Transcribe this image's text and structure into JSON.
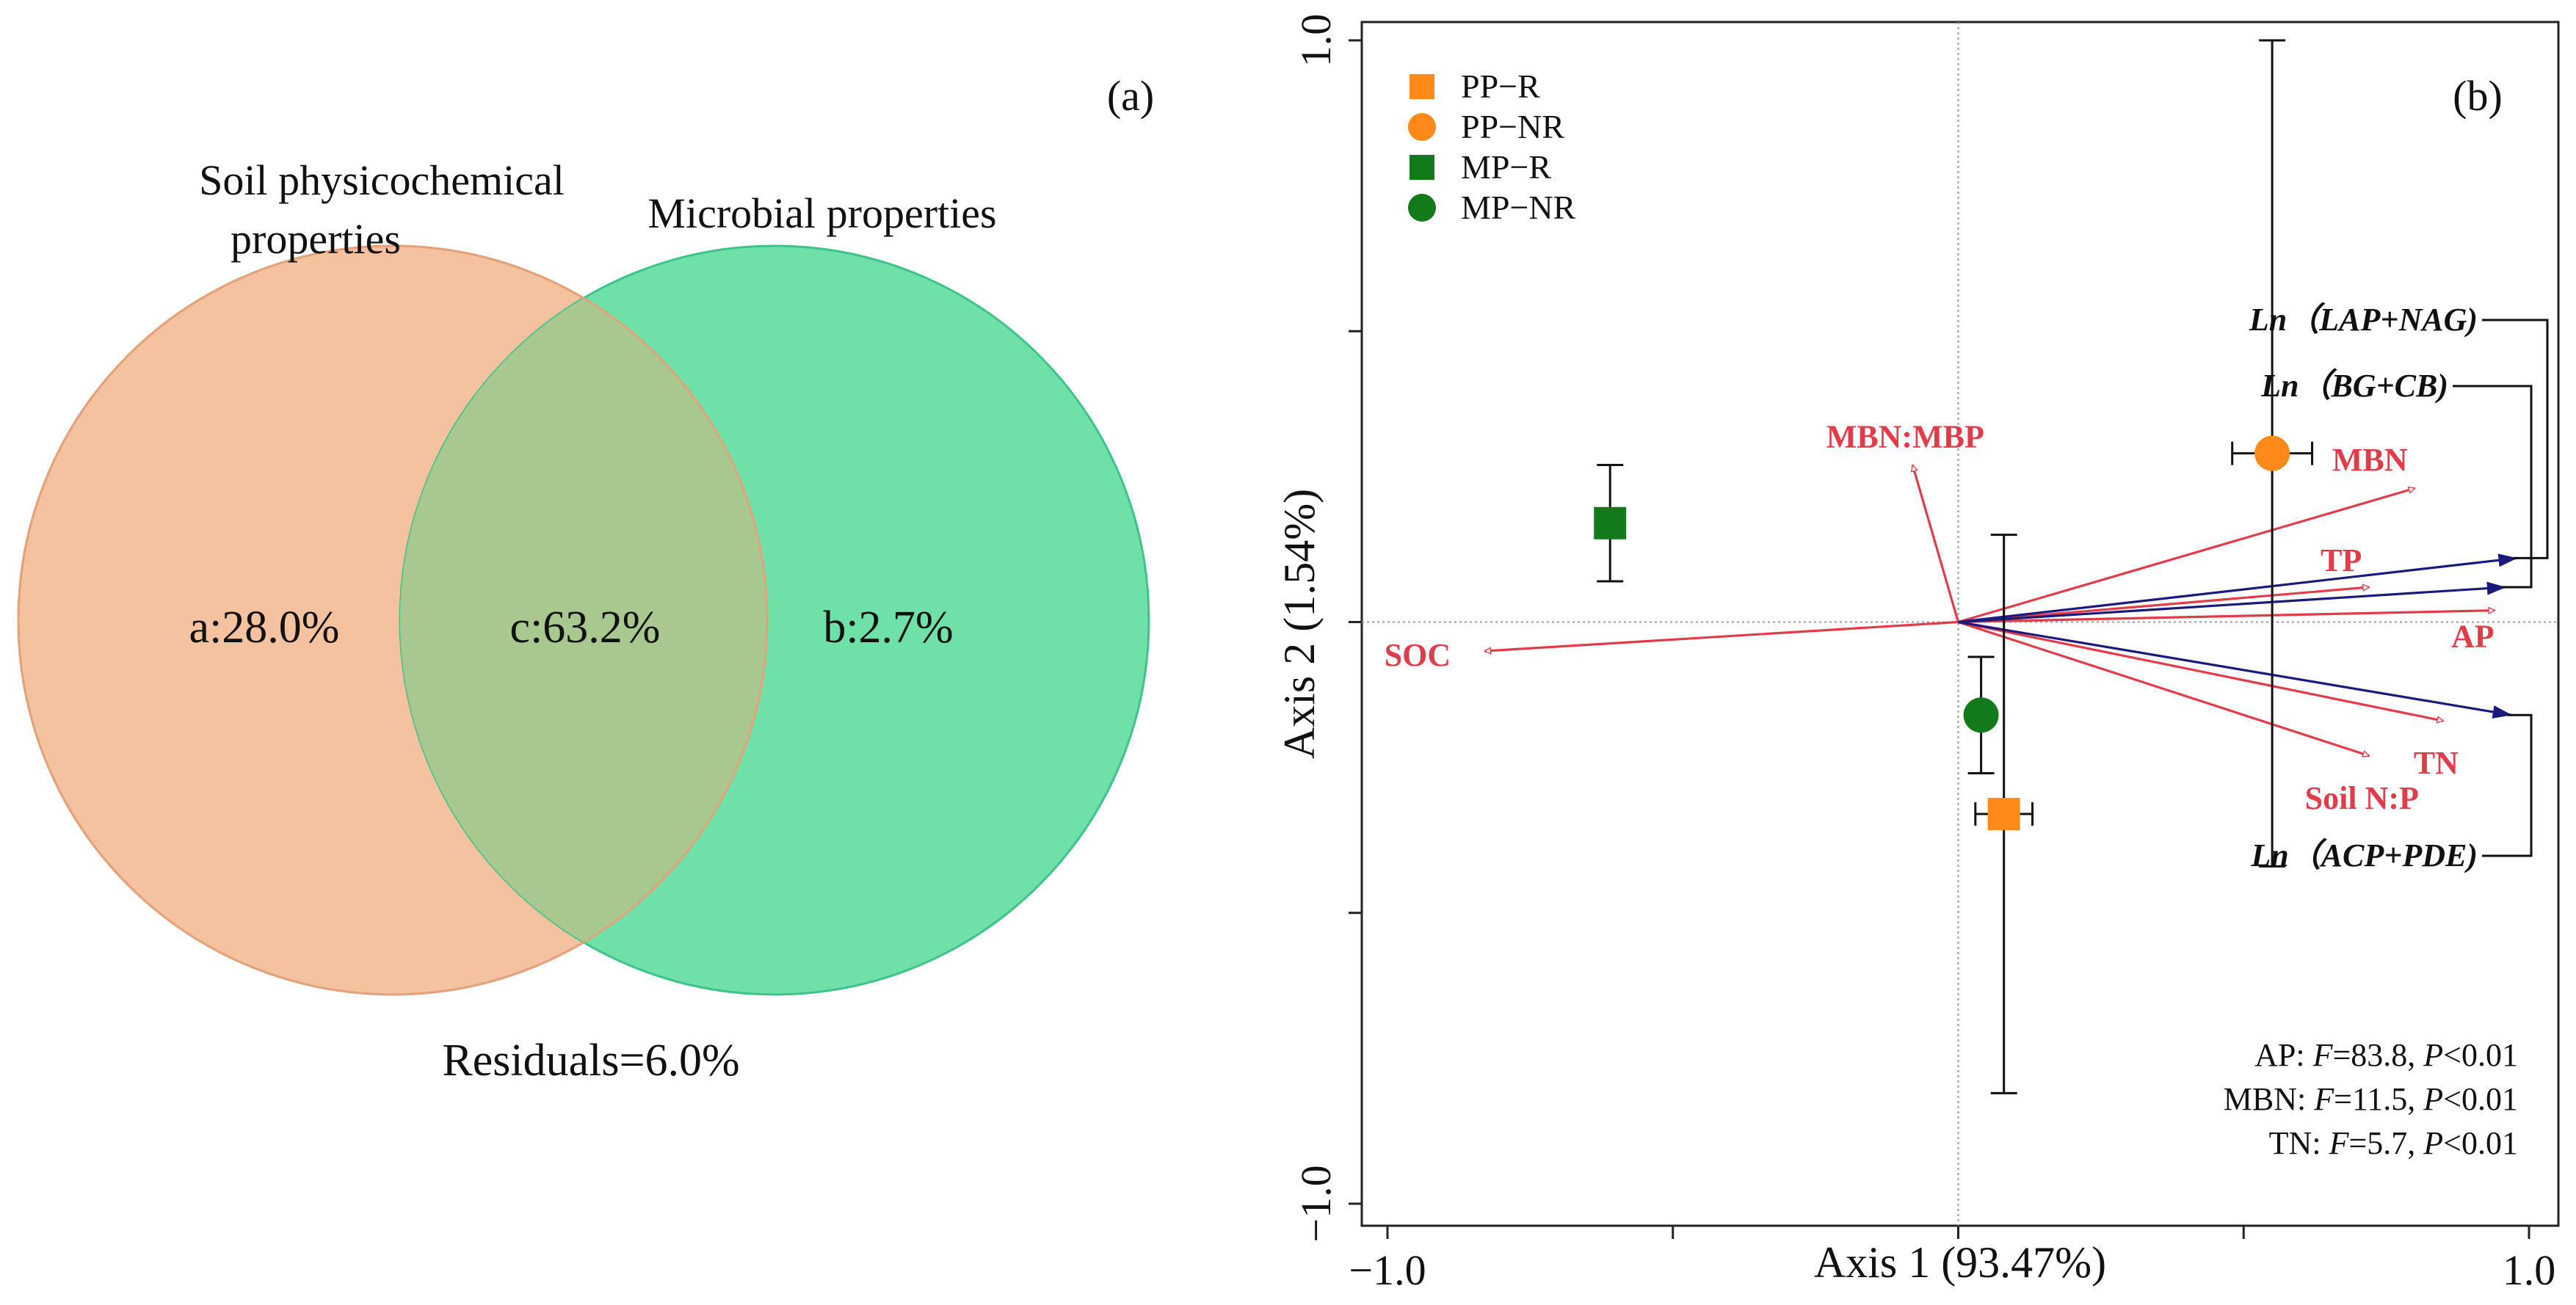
{
  "chart_data": [
    {
      "panel": "(a)",
      "type": "venn",
      "sets": [
        {
          "name": "Soil physicochemical properties",
          "label": "a:28.0%",
          "color": "#f5c2a0"
        },
        {
          "name": "Microbial properties",
          "label": "b:2.7%",
          "color": "#6fe0a8"
        }
      ],
      "overlap_label": "c:63.2%",
      "overlap_color": "#a8c890",
      "residuals": "Residuals=6.0%"
    },
    {
      "panel": "(b)",
      "type": "scatter",
      "xlabel": "Axis 1 (93.47%)",
      "ylabel": "Axis 2 (1.54%)",
      "xlim": [
        -1.0,
        1.0
      ],
      "ylim": [
        -1.0,
        1.0
      ],
      "xticks": [
        "−1.0",
        "1.0"
      ],
      "yticks": [
        "1.0",
        "−1.0"
      ],
      "legend": [
        {
          "label": "PP−R",
          "shape": "square",
          "color": "#ff8a1a"
        },
        {
          "label": "PP−NR",
          "shape": "circle",
          "color": "#ff8a1a"
        },
        {
          "label": "MP−R",
          "shape": "square",
          "color": "#127a1a"
        },
        {
          "label": "MP−NR",
          "shape": "circle",
          "color": "#127a1a"
        }
      ],
      "points": [
        {
          "name": "PP-R",
          "shape": "square",
          "color": "#ff8a1a",
          "x": 0.08,
          "y": -0.33,
          "xerr": 0.05,
          "yerr": 0.48
        },
        {
          "name": "PP-NR",
          "shape": "circle",
          "color": "#ff8a1a",
          "x": 0.55,
          "y": 0.29,
          "xerr": 0.07,
          "yerr": 0.71
        },
        {
          "name": "MP-R",
          "shape": "square",
          "color": "#127a1a",
          "x": -0.61,
          "y": 0.17,
          "xerr": 0,
          "yerr": 0.1
        },
        {
          "name": "MP-NR",
          "shape": "circle",
          "color": "#127a1a",
          "x": 0.04,
          "y": -0.16,
          "xerr": 0,
          "yerr": 0.1
        }
      ],
      "vectors": [
        {
          "label": "SOC",
          "x": -0.83,
          "y": -0.05,
          "color": "#e03c4a"
        },
        {
          "label": "MBN:MBP",
          "x": -0.08,
          "y": 0.27,
          "color": "#e03c4a"
        },
        {
          "label": "MBN",
          "x": 0.8,
          "y": 0.23,
          "color": "#e03c4a"
        },
        {
          "label": "TP",
          "x": 0.72,
          "y": 0.06,
          "color": "#e03c4a"
        },
        {
          "label": "AP",
          "x": 0.94,
          "y": 0.02,
          "color": "#e03c4a"
        },
        {
          "label": "TN",
          "x": 0.85,
          "y": -0.17,
          "color": "#e03c4a"
        },
        {
          "label": "Soil N:P",
          "x": 0.72,
          "y": -0.23,
          "color": "#e03c4a"
        },
        {
          "label": "Ln（LAP+NAG)",
          "x": 0.98,
          "y": 0.11,
          "color": "#1a1a7a"
        },
        {
          "label": "Ln（BG+CB)",
          "x": 0.96,
          "y": 0.06,
          "color": "#1a1a7a"
        },
        {
          "label": "Ln（ACP+PDE)",
          "x": 0.97,
          "y": -0.16,
          "color": "#1a1a7a"
        }
      ],
      "stats": [
        {
          "var": "AP: ",
          "F": "=83.8, ",
          "P": "<0.01"
        },
        {
          "var": "MBN: ",
          "F": "=11.5, ",
          "P": "<0.01"
        },
        {
          "var": "TN: ",
          "F": "=5.7, ",
          "P": "<0.01"
        }
      ]
    }
  ]
}
